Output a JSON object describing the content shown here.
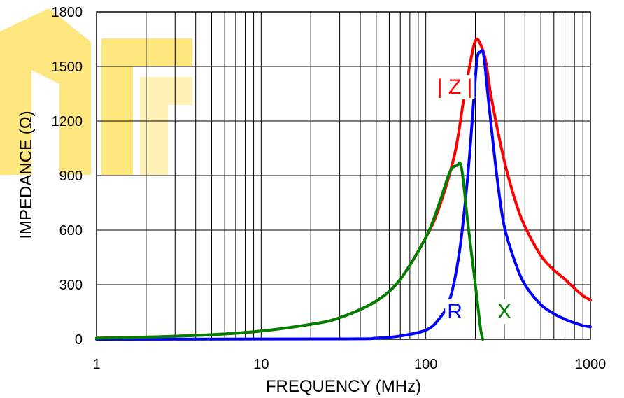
{
  "chart_data": {
    "type": "line",
    "xlabel": "FREQUENCY (MHz)",
    "ylabel": "IMPEDANCE (Ω)",
    "x_scale": "log",
    "xlim": [
      1,
      1000
    ],
    "ylim": [
      0,
      1800
    ],
    "grid": true,
    "x_ticks": [
      1,
      10,
      100,
      1000
    ],
    "x_tick_labels": [
      "1",
      "10",
      "100",
      "1000"
    ],
    "y_ticks": [
      0,
      300,
      600,
      900,
      1200,
      1500,
      1800
    ],
    "y_tick_labels": [
      "0",
      "300",
      "600",
      "900",
      "1200",
      "1500",
      "1800"
    ],
    "series": [
      {
        "name": "| Z |",
        "color": "#ff0000",
        "points": [
          [
            1,
            6
          ],
          [
            2,
            12
          ],
          [
            5,
            25
          ],
          [
            10,
            45
          ],
          [
            20,
            82
          ],
          [
            30,
            118
          ],
          [
            50,
            210
          ],
          [
            70,
            330
          ],
          [
            100,
            560
          ],
          [
            120,
            720
          ],
          [
            150,
            1020
          ],
          [
            170,
            1320
          ],
          [
            190,
            1560
          ],
          [
            200,
            1640
          ],
          [
            210,
            1640
          ],
          [
            230,
            1540
          ],
          [
            250,
            1330
          ],
          [
            300,
            980
          ],
          [
            350,
            760
          ],
          [
            400,
            620
          ],
          [
            500,
            460
          ],
          [
            600,
            380
          ],
          [
            700,
            330
          ],
          [
            800,
            280
          ],
          [
            900,
            240
          ],
          [
            1000,
            215
          ]
        ]
      },
      {
        "name": "R",
        "color": "#0000ff",
        "points": [
          [
            1,
            0
          ],
          [
            30,
            2
          ],
          [
            50,
            6
          ],
          [
            70,
            18
          ],
          [
            100,
            50
          ],
          [
            120,
            110
          ],
          [
            140,
            220
          ],
          [
            160,
            480
          ],
          [
            180,
            900
          ],
          [
            195,
            1300
          ],
          [
            205,
            1540
          ],
          [
            215,
            1580
          ],
          [
            225,
            1560
          ],
          [
            240,
            1320
          ],
          [
            270,
            900
          ],
          [
            300,
            620
          ],
          [
            350,
            420
          ],
          [
            400,
            300
          ],
          [
            500,
            190
          ],
          [
            600,
            140
          ],
          [
            700,
            110
          ],
          [
            800,
            90
          ],
          [
            900,
            75
          ],
          [
            1000,
            68
          ]
        ]
      },
      {
        "name": "X",
        "color": "#008000",
        "points": [
          [
            1,
            6
          ],
          [
            2,
            12
          ],
          [
            5,
            25
          ],
          [
            10,
            45
          ],
          [
            20,
            82
          ],
          [
            30,
            118
          ],
          [
            50,
            210
          ],
          [
            70,
            330
          ],
          [
            100,
            560
          ],
          [
            120,
            740
          ],
          [
            140,
            920
          ],
          [
            155,
            955
          ],
          [
            165,
            940
          ],
          [
            180,
            640
          ],
          [
            200,
            300
          ],
          [
            215,
            60
          ],
          [
            222,
            0
          ]
        ]
      }
    ],
    "labels": [
      {
        "text": "| Z |",
        "color": "#ff0000",
        "x": 150,
        "y": 1350
      },
      {
        "text": "R",
        "color": "#0000ff",
        "x": 150,
        "y": 115
      },
      {
        "text": "X",
        "color": "#008000",
        "x": 300,
        "y": 115
      }
    ]
  },
  "watermark": {
    "text": "AR",
    "color": "#ffd000"
  }
}
